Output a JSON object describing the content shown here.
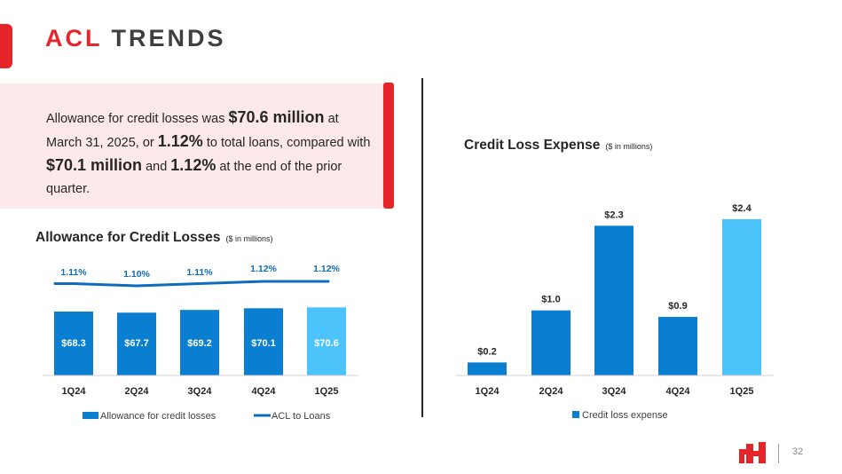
{
  "header": {
    "title_accent": "ACL",
    "title_rest": "TRENDS"
  },
  "callout": {
    "p1": "Allowance for credit losses was ",
    "b1": "$70.6 million",
    "p2": " at March 31, 2025, or ",
    "b2": "1.12%",
    "p3": " to total loans, compared with ",
    "b3": "$70.1 million",
    "p4": " and ",
    "b4": "1.12%",
    "p5": " at the end of the prior quarter."
  },
  "colors": {
    "accent_red": "#e6252b",
    "bar_blue": "#0a7ed0",
    "bar_highlight": "#4cc4fb",
    "line_blue": "#0f6cbd",
    "label_blue": "#0f6cbd",
    "callout_bg": "#fde9ea"
  },
  "footer": {
    "page_number": "32",
    "logo_icon": "brand-logo-icon"
  },
  "chart_data": [
    {
      "type": "bar",
      "title": "Allowance for Credit Losses",
      "units": "($ in millions)",
      "categories": [
        "1Q24",
        "2Q24",
        "3Q24",
        "4Q24",
        "1Q25"
      ],
      "series": [
        {
          "name": "Allowance for credit losses",
          "type": "bar",
          "values": [
            68.3,
            67.7,
            69.2,
            70.1,
            70.6
          ],
          "labels": [
            "$68.3",
            "$67.7",
            "$69.2",
            "$70.1",
            "$70.6"
          ]
        },
        {
          "name": "ACL to Loans",
          "type": "line",
          "values": [
            1.11,
            1.1,
            1.11,
            1.12,
            1.12
          ],
          "labels": [
            "1.11%",
            "1.10%",
            "1.11%",
            "1.12%",
            "1.12%"
          ]
        }
      ],
      "highlight_index": 4,
      "legend": "bottom"
    },
    {
      "type": "bar",
      "title": "Credit Loss Expense",
      "units": "($ in millions)",
      "categories": [
        "1Q24",
        "2Q24",
        "3Q24",
        "4Q24",
        "1Q25"
      ],
      "series": [
        {
          "name": "Credit loss expense",
          "values": [
            0.2,
            1.0,
            2.3,
            0.9,
            2.4
          ],
          "labels": [
            "$0.2",
            "$1.0",
            "$2.3",
            "$0.9",
            "$2.4"
          ]
        }
      ],
      "highlight_index": 4,
      "legend": "bottom"
    }
  ]
}
